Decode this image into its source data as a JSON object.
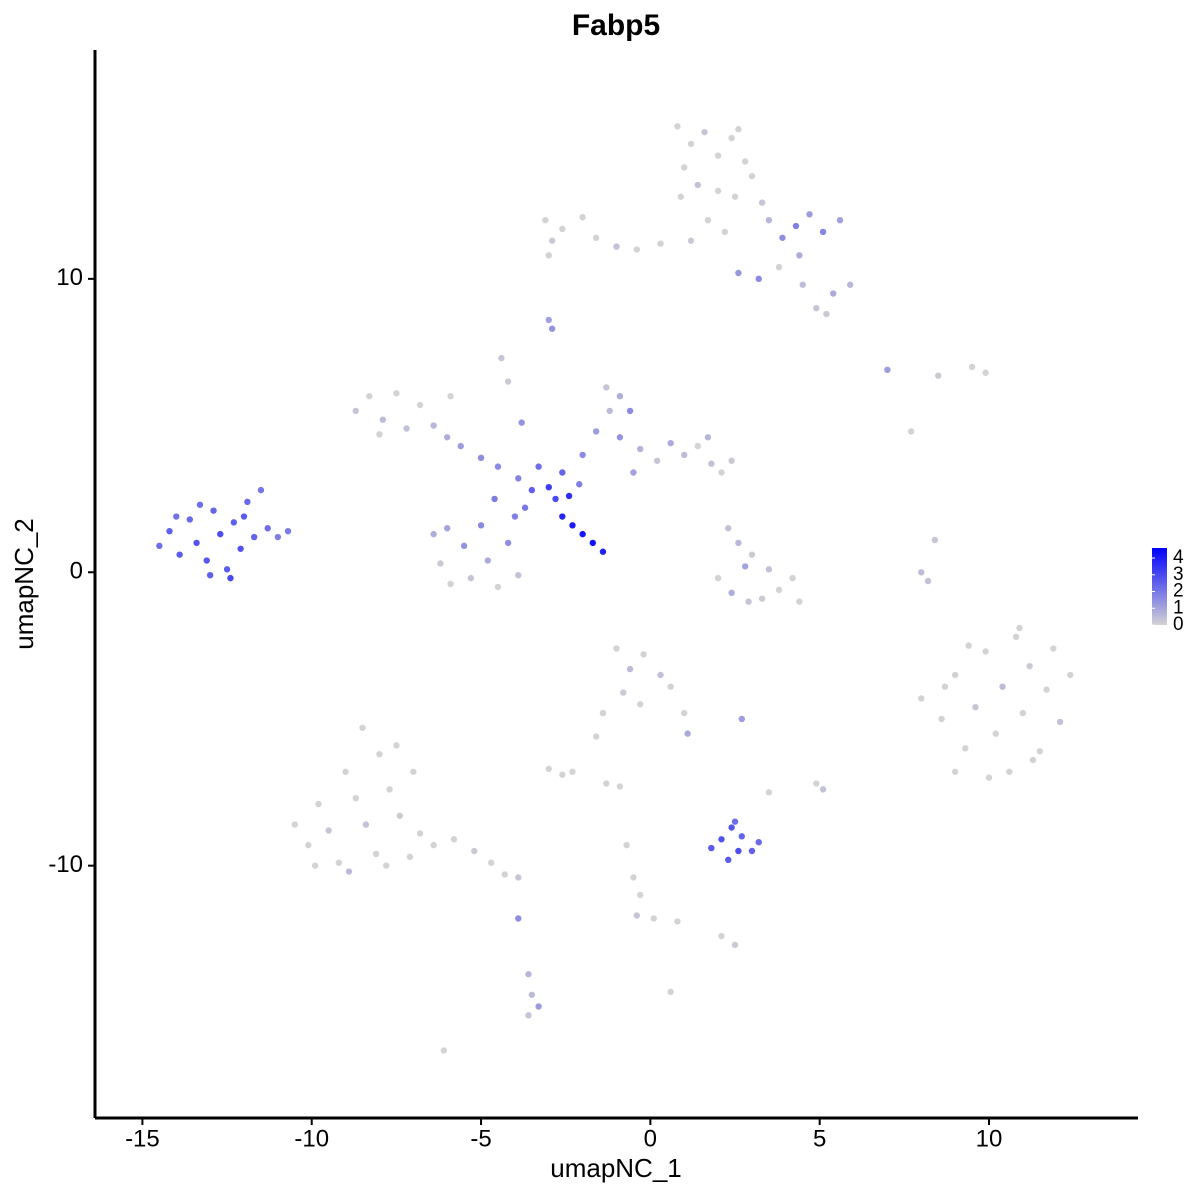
{
  "chart_data": {
    "type": "scatter",
    "title": "Fabp5",
    "xlabel": "umapNC_1",
    "ylabel": "umapNC_2",
    "xlim": [
      -16.4,
      14.4
    ],
    "ylim": [
      -18.6,
      17.8
    ],
    "xticks": [
      -15,
      -10,
      -5,
      0,
      5,
      10
    ],
    "yticks": [
      -10,
      0,
      10
    ],
    "grid": false,
    "colorbar": {
      "lim": [
        0,
        4.6
      ],
      "ticks": [
        0,
        1,
        2,
        3,
        4
      ],
      "low": "#d3d3d3",
      "high": "#0000ff"
    },
    "x": [
      -14.5,
      -14.2,
      -13.9,
      -13.6,
      -13.4,
      -13.1,
      -12.9,
      -12.7,
      -12.5,
      -12.3,
      -12.1,
      -11.9,
      -11.7,
      -11.5,
      -11.3,
      -11.0,
      -10.7,
      -13.0,
      -12.4,
      -14.0,
      -13.3,
      -12.0,
      -8.7,
      -8.3,
      -7.9,
      -7.5,
      -7.2,
      -8.0,
      -6.8,
      -6.4,
      -6.0,
      -5.6,
      -5.0,
      -4.5,
      -5.9,
      -6.4,
      -6.2,
      -5.9,
      -5.5,
      -5.3,
      -5.0,
      -4.8,
      -4.5,
      -4.2,
      -4.0,
      -3.9,
      -6.0,
      -4.6,
      -3.7,
      -3.5,
      -3.0,
      -2.8,
      -2.4,
      -3.3,
      -2.6,
      -2.1,
      -3.9,
      -2.6,
      -2.3,
      -2.0,
      -1.7,
      -1.4,
      -3.8,
      -4.2,
      -4.4,
      -2.0,
      -1.6,
      -1.2,
      -1.3,
      -0.9,
      -0.6,
      -0.9,
      -0.3,
      0.2,
      0.6,
      1.0,
      1.4,
      1.8,
      2.1,
      2.4,
      1.7,
      -0.5,
      0.8,
      1.2,
      1.6,
      2.0,
      2.4,
      2.8,
      2.6,
      1.0,
      1.4,
      2.0,
      2.5,
      3.0,
      3.3,
      0.9,
      1.7,
      1.2,
      2.2,
      3.5,
      3.9,
      4.3,
      4.7,
      5.1,
      5.6,
      4.4,
      2.6,
      3.2,
      4.5,
      4.9,
      5.4,
      5.9,
      5.2,
      3.8,
      -3.1,
      -2.6,
      -2.0,
      -1.6,
      -1.0,
      -0.4,
      0.3,
      -3.0,
      -2.9,
      -3.0,
      -2.9,
      7.0,
      8.5,
      9.5,
      9.9,
      7.7,
      8.4,
      8.0,
      8.2,
      2.3,
      2.6,
      3.0,
      2.0,
      2.4,
      2.9,
      3.3,
      3.8,
      4.2,
      3.5,
      2.8,
      4.4,
      8.0,
      8.6,
      9.0,
      9.3,
      9.6,
      9.9,
      10.2,
      10.4,
      10.6,
      10.8,
      11.0,
      11.2,
      11.5,
      11.7,
      11.9,
      12.1,
      12.4,
      9.0,
      10.0,
      11.3,
      9.4,
      10.9,
      8.7,
      -1.0,
      -0.6,
      -0.2,
      0.3,
      0.6,
      -0.8,
      -0.3,
      1.0,
      1.1,
      -1.4,
      -1.6,
      2.7,
      -3.0,
      -2.6,
      -2.3,
      -1.3,
      -0.9,
      1.8,
      2.1,
      2.4,
      2.7,
      3.0,
      2.3,
      2.6,
      3.2,
      2.5,
      3.5,
      4.9,
      5.1,
      -0.7,
      -0.5,
      -0.3,
      -0.4,
      0.1,
      0.8,
      2.1,
      2.5,
      0.6,
      -6.1,
      -3.9,
      -3.6,
      -3.5,
      -3.3,
      -3.6,
      -10.5,
      -10.1,
      -9.8,
      -9.5,
      -9.2,
      -9.0,
      -8.7,
      -8.4,
      -8.1,
      -8.5,
      -8.0,
      -7.7,
      -7.4,
      -7.1,
      -7.5,
      -7.0,
      -6.8,
      -6.4,
      -5.8,
      -5.2,
      -4.7,
      -4.3,
      -3.9,
      -9.9,
      -8.9,
      -7.8
    ],
    "y": [
      0.9,
      1.4,
      0.6,
      1.8,
      1.0,
      0.4,
      2.1,
      1.3,
      0.1,
      1.7,
      0.8,
      2.4,
      1.2,
      2.8,
      1.5,
      1.2,
      1.4,
      -0.1,
      -0.2,
      1.9,
      2.3,
      1.9,
      5.5,
      6.0,
      5.2,
      6.1,
      4.9,
      4.7,
      5.7,
      5.0,
      4.6,
      4.3,
      3.9,
      3.6,
      6.0,
      1.3,
      0.3,
      -0.4,
      0.9,
      -0.2,
      1.6,
      0.4,
      -0.5,
      1.0,
      1.9,
      -0.1,
      1.5,
      2.5,
      2.2,
      2.8,
      2.9,
      2.5,
      2.6,
      3.6,
      3.4,
      3.0,
      3.2,
      1.9,
      1.6,
      1.3,
      1.0,
      0.7,
      5.1,
      6.5,
      7.3,
      4.0,
      4.8,
      5.5,
      6.3,
      6.0,
      5.5,
      4.6,
      4.2,
      3.8,
      4.4,
      4.0,
      4.3,
      3.7,
      3.4,
      3.8,
      4.6,
      3.4,
      15.2,
      14.6,
      15.0,
      14.2,
      14.8,
      14.0,
      15.1,
      13.8,
      13.2,
      13.0,
      12.8,
      13.5,
      12.6,
      12.8,
      12.0,
      11.3,
      11.6,
      12.0,
      11.4,
      11.8,
      12.2,
      11.6,
      12.0,
      10.8,
      10.2,
      10.0,
      9.8,
      9.0,
      9.5,
      9.8,
      8.8,
      10.4,
      12.0,
      11.7,
      12.1,
      11.4,
      11.1,
      11.0,
      11.2,
      10.8,
      11.3,
      8.6,
      8.3,
      6.9,
      6.7,
      7.0,
      6.8,
      4.8,
      1.1,
      0.0,
      -0.3,
      1.5,
      1.0,
      0.6,
      -0.2,
      -0.7,
      -1.0,
      -0.9,
      -0.6,
      -0.2,
      0.1,
      0.2,
      -1.0,
      -4.3,
      -5.0,
      -3.5,
      -6.0,
      -4.6,
      -2.7,
      -5.5,
      -3.9,
      -6.8,
      -2.2,
      -4.8,
      -3.2,
      -6.1,
      -4.0,
      -2.6,
      -5.1,
      -3.5,
      -6.8,
      -7.0,
      -6.4,
      -2.5,
      -1.9,
      -3.9,
      -2.6,
      -3.3,
      -2.8,
      -3.5,
      -3.9,
      -4.1,
      -4.5,
      -4.8,
      -5.5,
      -4.8,
      -5.6,
      -5.0,
      -6.7,
      -6.9,
      -6.8,
      -7.2,
      -7.3,
      -9.4,
      -9.1,
      -8.7,
      -9.0,
      -9.5,
      -9.8,
      -9.5,
      -9.2,
      -8.5,
      -7.5,
      -7.2,
      -7.4,
      -9.3,
      -10.4,
      -11.0,
      -11.7,
      -11.8,
      -11.9,
      -12.4,
      -12.7,
      -14.3,
      -16.3,
      -11.8,
      -13.7,
      -14.4,
      -14.8,
      -15.1,
      -8.6,
      -9.3,
      -7.9,
      -8.8,
      -9.9,
      -6.8,
      -7.7,
      -8.6,
      -9.6,
      -5.3,
      -6.2,
      -7.4,
      -8.3,
      -9.7,
      -5.9,
      -6.8,
      -8.9,
      -9.3,
      -9.1,
      -9.5,
      -9.9,
      -10.3,
      -10.4,
      -10.0,
      -10.2,
      -10.0
    ],
    "color_values": [
      2.2,
      2.5,
      2.6,
      2.3,
      2.8,
      2.7,
      2.4,
      2.9,
      2.6,
      2.5,
      2.8,
      2.3,
      2.4,
      2.0,
      2.2,
      1.8,
      1.9,
      2.5,
      3.0,
      2.1,
      2.2,
      2.6,
      0.3,
      0,
      0.5,
      0,
      0.4,
      0,
      0,
      0.6,
      0.8,
      1.2,
      1.5,
      1.6,
      0,
      0.8,
      0.2,
      0,
      1.4,
      0.3,
      1.6,
      0.9,
      0,
      1.5,
      1.8,
      0.4,
      1.0,
      1.9,
      2.0,
      2.5,
      3.3,
      3.0,
      3.6,
      2.2,
      2.4,
      1.8,
      1.7,
      3.8,
      4.0,
      4.1,
      4.2,
      3.9,
      1.4,
      0.2,
      0.3,
      1.6,
      1.2,
      0.5,
      0.3,
      0.8,
      1.6,
      1.4,
      0.7,
      0.3,
      0.9,
      0.5,
      0,
      0.4,
      0,
      0.2,
      0.6,
      1.1,
      0,
      0,
      0.3,
      0,
      0,
      0,
      0,
      0,
      0.4,
      0,
      0,
      0,
      0.3,
      0,
      0,
      0.2,
      0,
      0.6,
      1.5,
      1.8,
      1.2,
      1.7,
      1.1,
      0.8,
      1.3,
      1.6,
      0.5,
      0.3,
      0.9,
      0.6,
      0.2,
      0,
      0,
      0,
      0,
      0,
      0.4,
      0,
      0,
      0,
      0.2,
      1.1,
      1.4,
      1.2,
      0.2,
      0,
      0,
      0,
      0.3,
      0.5,
      0.4,
      0.4,
      0.6,
      0.2,
      0,
      0.8,
      0.3,
      0.2,
      0,
      0,
      0.4,
      1.0,
      0,
      0,
      0,
      0,
      0,
      0.3,
      0,
      0,
      0.5,
      0,
      0,
      0,
      0.2,
      0,
      0,
      0,
      0.4,
      0,
      0,
      0,
      0,
      0,
      0,
      0,
      0,
      0.5,
      0,
      0.4,
      0,
      0.2,
      0,
      0,
      0.9,
      0,
      0,
      1.2,
      0,
      0,
      0,
      0,
      0,
      2.6,
      2.8,
      2.7,
      2.4,
      2.5,
      2.6,
      2.9,
      2.3,
      2.2,
      0,
      0,
      0.4,
      0,
      0,
      0,
      0.3,
      0,
      0,
      0,
      0.2,
      0,
      0,
      1.5,
      0.6,
      0.5,
      1.2,
      0.3,
      0,
      0,
      0,
      0.3,
      0,
      0,
      0,
      0.4,
      0,
      0,
      0,
      0,
      0.2,
      0,
      0,
      0,
      0,
      0,
      0,
      0.2,
      0,
      0,
      0.3,
      0,
      0.5,
      0
    ]
  }
}
